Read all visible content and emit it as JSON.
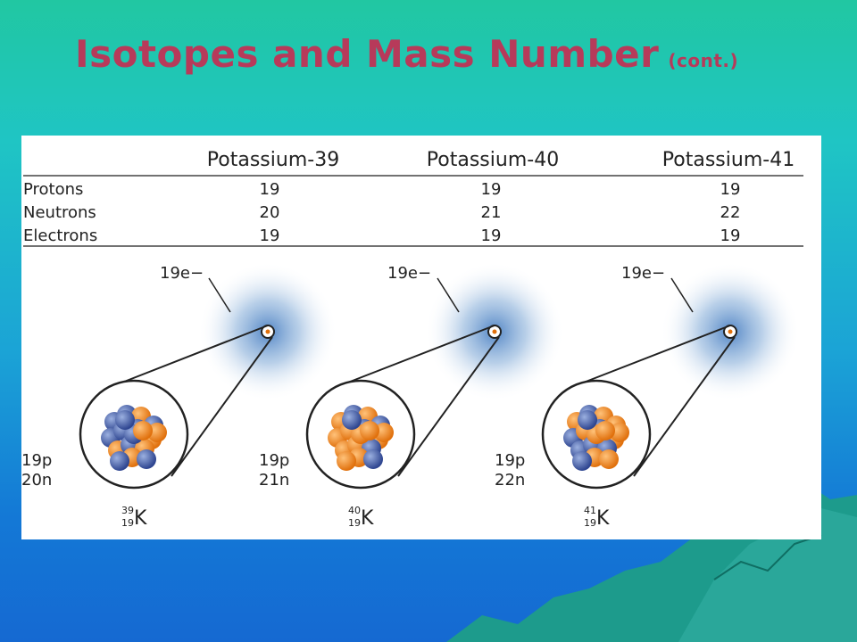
{
  "title": {
    "main": "Isotopes and Mass Number",
    "suffix": "(cont.)"
  },
  "table": {
    "columns": [
      "Potassium-39",
      "Potassium-40",
      "Potassium-41"
    ],
    "rows": [
      {
        "label": "Protons",
        "values": [
          "19",
          "19",
          "19"
        ]
      },
      {
        "label": "Neutrons",
        "values": [
          "20",
          "21",
          "22"
        ]
      },
      {
        "label": "Electrons",
        "values": [
          "19",
          "19",
          "19"
        ]
      }
    ]
  },
  "atoms": [
    {
      "electron_label": "19e−",
      "protons_label": "19p",
      "neutrons_label": "20n",
      "mass": "39",
      "atomic": "19",
      "symbol": "K"
    },
    {
      "electron_label": "19e−",
      "protons_label": "19p",
      "neutrons_label": "21n",
      "mass": "40",
      "atomic": "19",
      "symbol": "K"
    },
    {
      "electron_label": "19e−",
      "protons_label": "19p",
      "neutrons_label": "22n",
      "mass": "41",
      "atomic": "19",
      "symbol": "K"
    }
  ],
  "colors": {
    "title": "#b73a5a",
    "proton": "#f08a1c",
    "neutron": "#4a66b0",
    "cloud": "#7ea8d6"
  }
}
